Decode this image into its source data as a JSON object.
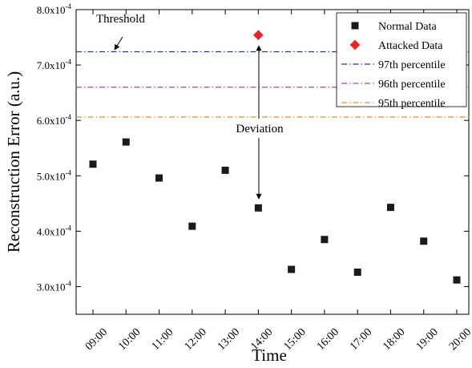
{
  "chart_data": {
    "type": "scatter",
    "xlabel": "Time",
    "ylabel": "Reconstruction Error (a.u.)",
    "categories": [
      "09:00",
      "10:00",
      "11:00",
      "12:00",
      "13:00",
      "14:00",
      "15:00",
      "16:00",
      "17:00",
      "18:00",
      "19:00",
      "20:00"
    ],
    "ylim": [
      0.00025,
      0.0008
    ],
    "yticks": [
      {
        "value": 0.0003,
        "mantissa": "3.0x10",
        "exp": "-4"
      },
      {
        "value": 0.0004,
        "mantissa": "4.0x10",
        "exp": "-4"
      },
      {
        "value": 0.0005,
        "mantissa": "5.0x10",
        "exp": "-4"
      },
      {
        "value": 0.0006,
        "mantissa": "6.0x10",
        "exp": "-4"
      },
      {
        "value": 0.0007,
        "mantissa": "7.0x10",
        "exp": "-4"
      },
      {
        "value": 0.0008,
        "mantissa": "8.0x10",
        "exp": "-4"
      }
    ],
    "series": [
      {
        "name": "Normal Data",
        "marker": "square",
        "color": "#1a1a1a",
        "points": [
          {
            "x": "09:00",
            "y": 0.000521
          },
          {
            "x": "10:00",
            "y": 0.000561
          },
          {
            "x": "11:00",
            "y": 0.000496
          },
          {
            "x": "12:00",
            "y": 0.000409
          },
          {
            "x": "13:00",
            "y": 0.00051
          },
          {
            "x": "14:00",
            "y": 0.000442
          },
          {
            "x": "15:00",
            "y": 0.000331
          },
          {
            "x": "16:00",
            "y": 0.000385
          },
          {
            "x": "17:00",
            "y": 0.000326
          },
          {
            "x": "18:00",
            "y": 0.000443
          },
          {
            "x": "19:00",
            "y": 0.000382
          },
          {
            "x": "20:00",
            "y": 0.000312
          }
        ]
      },
      {
        "name": "Attacked Data",
        "marker": "diamond",
        "color": "#e8262a",
        "points": [
          {
            "x": "14:00",
            "y": 0.000754
          }
        ]
      }
    ],
    "hlines": [
      {
        "name": "97th percentile",
        "value": 0.000724,
        "color": "#1f3f8f"
      },
      {
        "name": "96th percentile",
        "value": 0.00066,
        "color": "#9b4d9b"
      },
      {
        "name": "95th percentile",
        "value": 0.000606,
        "color": "#f08c28"
      }
    ],
    "annotations": {
      "threshold_label": "Threshold",
      "deviation_label": "Deviation"
    },
    "legend_position": "top-right",
    "grid": false
  }
}
